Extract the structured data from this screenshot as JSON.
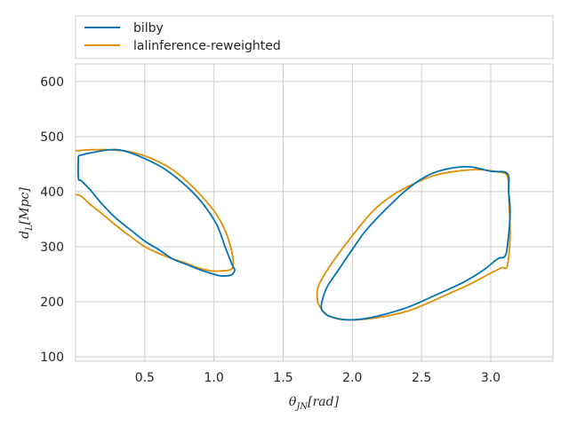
{
  "chart_data": {
    "type": "line",
    "xlabel": "θ_JN [rad]",
    "ylabel": "d_L [Mpc]",
    "xlim": [
      0.0,
      3.45
    ],
    "ylim": [
      92,
      632
    ],
    "xticks": [
      0.5,
      1.0,
      1.5,
      2.0,
      2.5,
      3.0
    ],
    "xtick_labels": [
      "0.5",
      "1.0",
      "1.5",
      "2.0",
      "2.5",
      "3.0"
    ],
    "yticks": [
      100,
      200,
      300,
      400,
      500,
      600
    ],
    "ytick_labels": [
      "100",
      "200",
      "300",
      "400",
      "500",
      "600"
    ],
    "grid": true,
    "legend_position": "above plot, left",
    "series": [
      {
        "name": "bilby",
        "color": "#0173b2",
        "contours": [
          [
            [
              0.02,
              465
            ],
            [
              0.1,
              470
            ],
            [
              0.25,
              476
            ],
            [
              0.35,
              474
            ],
            [
              0.5,
              460
            ],
            [
              0.65,
              440
            ],
            [
              0.8,
              410
            ],
            [
              0.92,
              378
            ],
            [
              1.02,
              340
            ],
            [
              1.08,
              300
            ],
            [
              1.13,
              268
            ],
            [
              1.15,
              258
            ],
            [
              1.14,
              252
            ],
            [
              1.12,
              248
            ],
            [
              1.05,
              247
            ],
            [
              1.0,
              250
            ],
            [
              0.9,
              258
            ],
            [
              0.8,
              268
            ],
            [
              0.7,
              278
            ],
            [
              0.6,
              295
            ],
            [
              0.5,
              310
            ],
            [
              0.4,
              330
            ],
            [
              0.3,
              350
            ],
            [
              0.2,
              375
            ],
            [
              0.1,
              405
            ],
            [
              0.04,
              420
            ],
            [
              0.02,
              425
            ],
            [
              0.02,
              465
            ]
          ],
          [
            [
              1.82,
              175
            ],
            [
              1.92,
              168
            ],
            [
              2.05,
              168
            ],
            [
              2.2,
              175
            ],
            [
              2.4,
              190
            ],
            [
              2.6,
              212
            ],
            [
              2.8,
              235
            ],
            [
              2.95,
              258
            ],
            [
              3.05,
              278
            ],
            [
              3.1,
              282
            ],
            [
              3.12,
              300
            ],
            [
              3.14,
              360
            ],
            [
              3.13,
              400
            ],
            [
              3.12,
              433
            ],
            [
              3.0,
              437
            ],
            [
              2.85,
              445
            ],
            [
              2.7,
              442
            ],
            [
              2.55,
              430
            ],
            [
              2.4,
              405
            ],
            [
              2.25,
              370
            ],
            [
              2.1,
              330
            ],
            [
              2.0,
              295
            ],
            [
              1.9,
              258
            ],
            [
              1.82,
              228
            ],
            [
              1.78,
              200
            ],
            [
              1.78,
              185
            ],
            [
              1.82,
              175
            ]
          ]
        ]
      },
      {
        "name": "lalinference-reweighted",
        "color": "#de8f05",
        "contours": [
          [
            [
              0.0,
              474
            ],
            [
              0.1,
              476
            ],
            [
              0.25,
              476
            ],
            [
              0.4,
              472
            ],
            [
              0.55,
              460
            ],
            [
              0.7,
              440
            ],
            [
              0.85,
              408
            ],
            [
              1.0,
              365
            ],
            [
              1.08,
              330
            ],
            [
              1.13,
              290
            ],
            [
              1.14,
              270
            ],
            [
              1.13,
              260
            ],
            [
              1.1,
              257
            ],
            [
              1.05,
              256
            ],
            [
              0.98,
              256
            ],
            [
              0.88,
              262
            ],
            [
              0.8,
              270
            ],
            [
              0.7,
              278
            ],
            [
              0.6,
              288
            ],
            [
              0.5,
              300
            ],
            [
              0.4,
              318
            ],
            [
              0.3,
              337
            ],
            [
              0.2,
              358
            ],
            [
              0.1,
              378
            ],
            [
              0.04,
              392
            ],
            [
              0.0,
              395
            ]
          ],
          [
            [
              1.78,
              185
            ],
            [
              1.85,
              172
            ],
            [
              2.0,
              167
            ],
            [
              2.2,
              172
            ],
            [
              2.4,
              183
            ],
            [
              2.55,
              198
            ],
            [
              2.7,
              215
            ],
            [
              2.85,
              232
            ],
            [
              3.0,
              252
            ],
            [
              3.08,
              262
            ],
            [
              3.12,
              265
            ],
            [
              3.14,
              320
            ],
            [
              3.13,
              390
            ],
            [
              3.12,
              428
            ],
            [
              3.05,
              436
            ],
            [
              2.9,
              440
            ],
            [
              2.75,
              437
            ],
            [
              2.6,
              430
            ],
            [
              2.45,
              415
            ],
            [
              2.3,
              395
            ],
            [
              2.15,
              365
            ],
            [
              2.0,
              320
            ],
            [
              1.88,
              280
            ],
            [
              1.8,
              250
            ],
            [
              1.75,
              225
            ],
            [
              1.75,
              200
            ],
            [
              1.78,
              185
            ]
          ]
        ]
      }
    ]
  }
}
